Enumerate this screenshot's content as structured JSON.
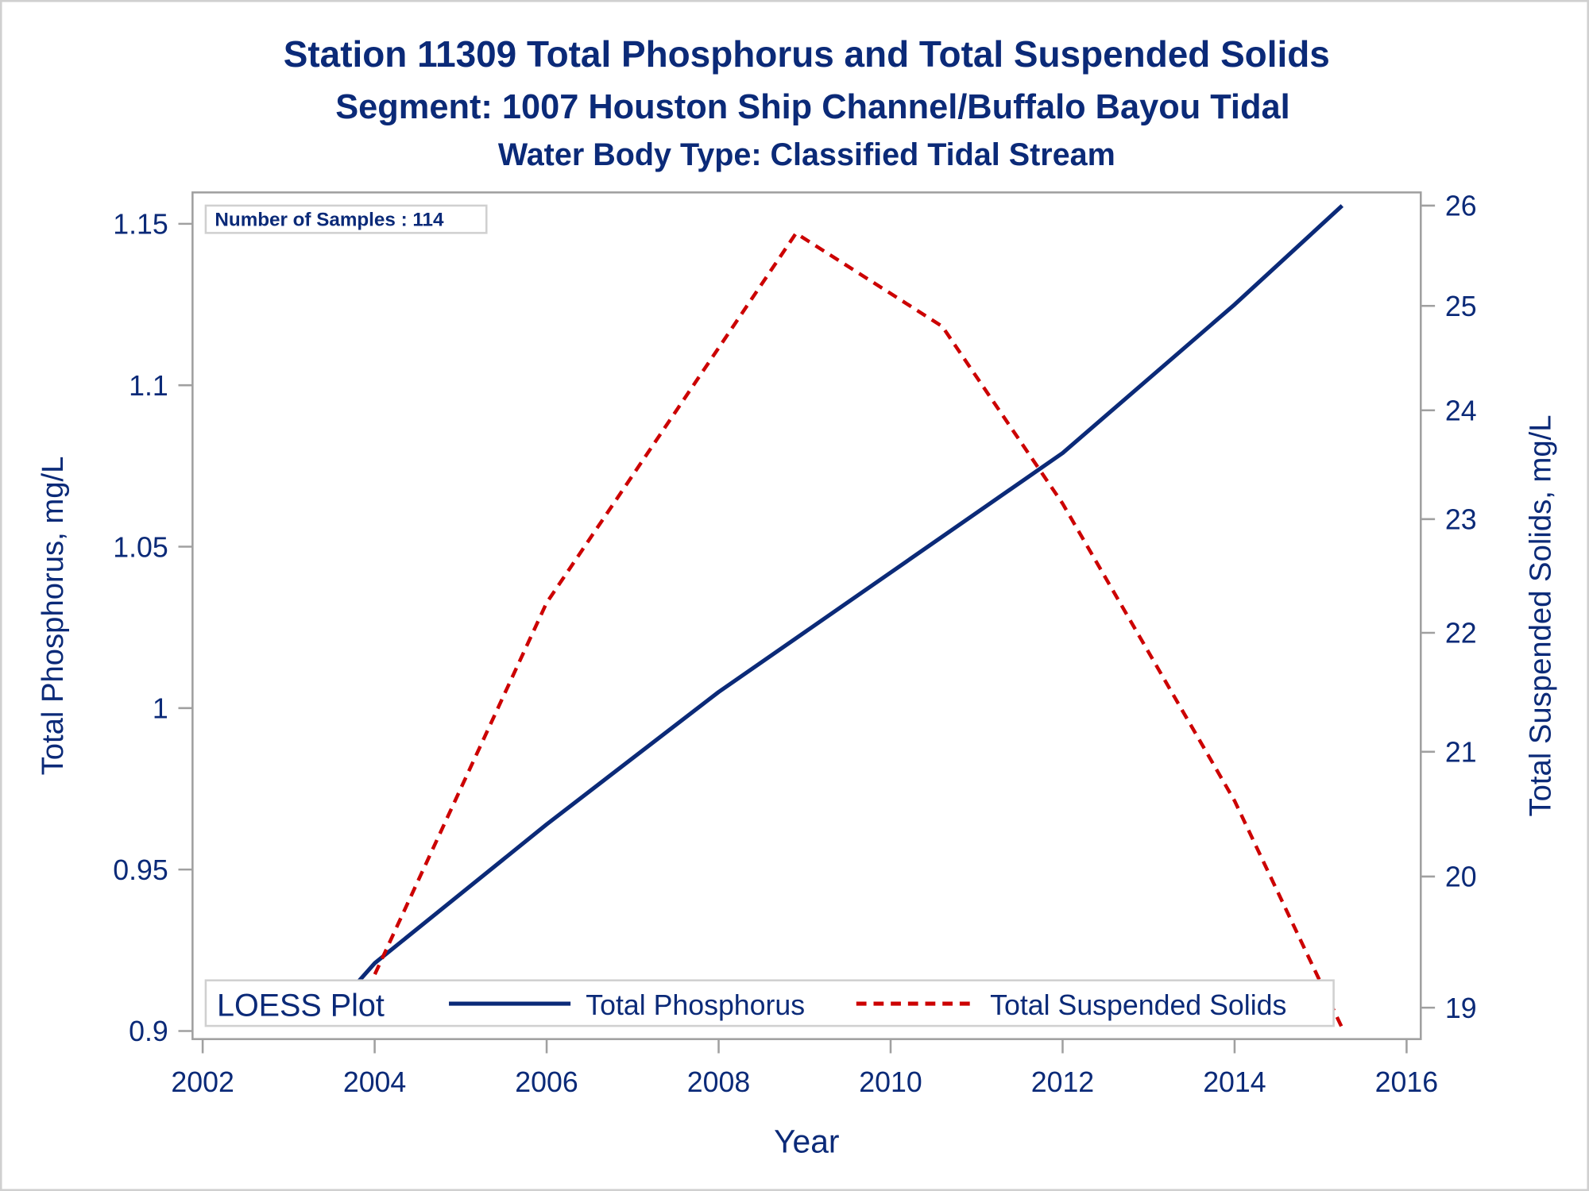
{
  "chart_data": {
    "type": "line",
    "title": "Station 11309  Total Phosphorus and Total Suspended Solids",
    "subtitle": "Segment: 1007  Houston Ship Channel/Buffalo Bayou Tidal",
    "subtitle2": "Water Body Type: Classified Tidal Stream",
    "xlabel": "Year",
    "ylabel": "Total Phosphorus, mg/L",
    "y2label": "Total Suspended Solids, mg/L",
    "xlim": [
      2002,
      2016
    ],
    "ylim": [
      0.9,
      1.155
    ],
    "y2lim": [
      18.85,
      26.1
    ],
    "y2scale": "log",
    "xticks": [
      "2002",
      "2004",
      "2006",
      "2008",
      "2010",
      "2012",
      "2014",
      "2016"
    ],
    "yticks": [
      "0.9",
      "0.95",
      "1",
      "1.05",
      "1.1",
      "1.15"
    ],
    "y2ticks": [
      "19",
      "20",
      "21",
      "22",
      "23",
      "24",
      "25",
      "26"
    ],
    "annotation": "Number of Samples : 114",
    "legend": {
      "title": "LOESS Plot",
      "position": "bottom-inside"
    },
    "series": [
      {
        "name": "Total Phosphorus",
        "axis": "left",
        "color": "#0b2a78",
        "style": "solid",
        "x": [
          2003.75,
          2004,
          2006,
          2008,
          2010,
          2012,
          2014,
          2015.25
        ],
        "y": [
          0.9135,
          0.921,
          0.964,
          1.005,
          1.042,
          1.079,
          1.125,
          1.1556
        ]
      },
      {
        "name": "Total Suspended Solids",
        "axis": "right",
        "color": "#cc0000",
        "style": "dashed",
        "x": [
          2003.75,
          2006,
          2008.9,
          2010.6,
          2012,
          2014,
          2015.25
        ],
        "y": [
          18.9,
          22.26,
          25.72,
          24.8,
          23.14,
          20.6,
          18.85
        ]
      }
    ]
  }
}
